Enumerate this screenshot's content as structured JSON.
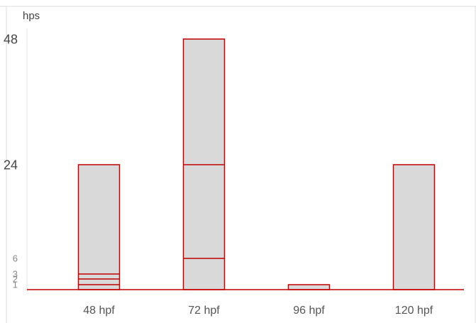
{
  "chart_data": {
    "type": "bar",
    "stacked": true,
    "ylabel": "hps",
    "categories": [
      "48 hpf",
      "72 hpf",
      "96 hpf",
      "120 hpf"
    ],
    "y_ticks": [
      1,
      2,
      3,
      6,
      24,
      48
    ],
    "y_tick_emphasis": [
      "minor",
      "minor",
      "minor",
      "minor",
      "major",
      "major"
    ],
    "bars": [
      {
        "category": "48 hpf",
        "total": 24,
        "segment_boundaries": [
          1,
          2,
          3
        ]
      },
      {
        "category": "72 hpf",
        "total": 48,
        "segment_boundaries": [
          6,
          24
        ]
      },
      {
        "category": "96 hpf",
        "total": 1,
        "segment_boundaries": []
      },
      {
        "category": "120 hpf",
        "total": 24,
        "segment_boundaries": []
      }
    ],
    "colors": {
      "fill": "#d9d9d9",
      "stroke": "#c00000",
      "axis": "#c00000",
      "frame": "#dddddd"
    },
    "grid": false,
    "legend": "none"
  }
}
